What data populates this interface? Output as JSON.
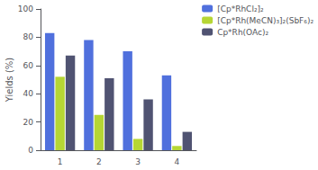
{
  "chart_data": {
    "type": "bar",
    "categories": [
      "1",
      "2",
      "3",
      "4"
    ],
    "series": [
      {
        "name": "[Cp*RhCl₂]₂",
        "values": [
          83,
          78,
          70,
          53
        ]
      },
      {
        "name": "[Cp*Rh(MeCN)₃]₂(SbF₆)₂",
        "values": [
          52,
          25,
          8,
          3
        ]
      },
      {
        "name": "Cp*Rh(OAc)₂",
        "values": [
          67,
          51,
          36,
          13
        ]
      }
    ],
    "ylabel": "Yields (%)",
    "ylim": [
      0,
      100
    ],
    "yticks": [
      0,
      20,
      40,
      60,
      80,
      100
    ],
    "grid": false,
    "legend": "upper right"
  }
}
